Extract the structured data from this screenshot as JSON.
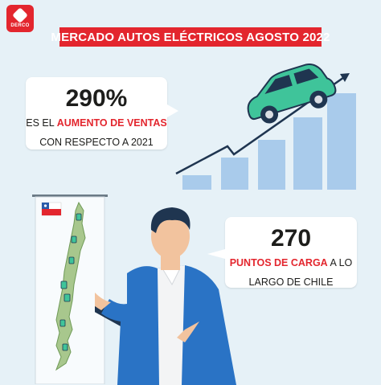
{
  "logo": {
    "text": "DERCO"
  },
  "header": {
    "title": "MERCADO AUTOS ELÉCTRICOS AGOSTO 2022"
  },
  "stat_sales": {
    "value": "290%",
    "line1_prefix": "ES EL ",
    "line1_highlight": "AUMENTO DE VENTAS",
    "line2": "CON RESPECTO A 2021"
  },
  "stat_chargers": {
    "value": "270",
    "line1_highlight": "PUNTOS DE CARGA",
    "line1_suffix": " A LO",
    "line2": "LARGO DE CHILE"
  },
  "colors": {
    "accent": "#e3262e",
    "background": "#e6f1f7",
    "bars": "#a9cbeb",
    "car": "#3fc49a",
    "map": "#a8c78d",
    "jacket": "#2a73c5"
  },
  "icons": [
    "chile-flag-icon",
    "car-icon",
    "growth-arrow-icon",
    "charging-station-icon"
  ]
}
